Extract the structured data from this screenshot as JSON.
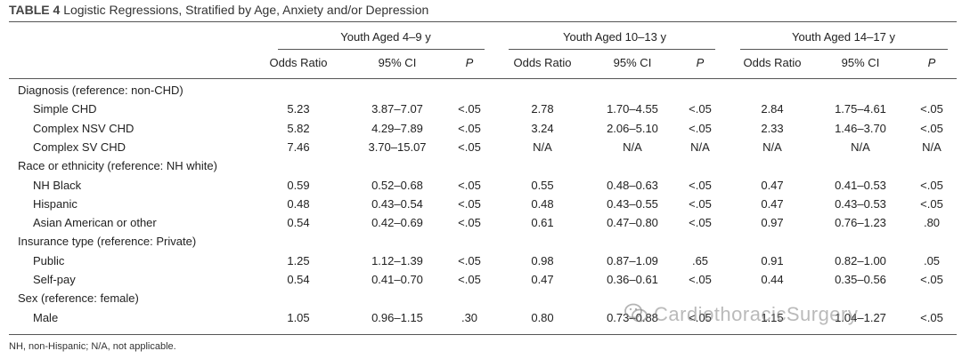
{
  "caption": {
    "label": "TABLE 4",
    "title": "Logistic Regressions, Stratified by Age, Anxiety and/or Depression"
  },
  "groups": [
    "Youth Aged 4–9 y",
    "Youth Aged 10–13 y",
    "Youth Aged 14–17 y"
  ],
  "subheaders": [
    "Odds Ratio",
    "95% CI",
    "P"
  ],
  "rows": [
    {
      "label": "Diagnosis (reference: non-CHD)",
      "indent": false,
      "cells": []
    },
    {
      "label": "Simple CHD",
      "indent": true,
      "cells": [
        "5.23",
        "3.87–7.07",
        "<.05",
        "2.78",
        "1.70–4.55",
        "<.05",
        "2.84",
        "1.75–4.61",
        "<.05"
      ]
    },
    {
      "label": "Complex NSV CHD",
      "indent": true,
      "cells": [
        "5.82",
        "4.29–7.89",
        "<.05",
        "3.24",
        "2.06–5.10",
        "<.05",
        "2.33",
        "1.46–3.70",
        "<.05"
      ]
    },
    {
      "label": "Complex SV CHD",
      "indent": true,
      "cells": [
        "7.46",
        "3.70–15.07",
        "<.05",
        "N/A",
        "N/A",
        "N/A",
        "N/A",
        "N/A",
        "N/A"
      ]
    },
    {
      "label": "Race or ethnicity (reference: NH white)",
      "indent": false,
      "cells": []
    },
    {
      "label": "NH Black",
      "indent": true,
      "cells": [
        "0.59",
        "0.52–0.68",
        "<.05",
        "0.55",
        "0.48–0.63",
        "<.05",
        "0.47",
        "0.41–0.53",
        "<.05"
      ]
    },
    {
      "label": "Hispanic",
      "indent": true,
      "cells": [
        "0.48",
        "0.43–0.54",
        "<.05",
        "0.48",
        "0.43–0.55",
        "<.05",
        "0.47",
        "0.43–0.53",
        "<.05"
      ]
    },
    {
      "label": "Asian American or other",
      "indent": true,
      "cells": [
        "0.54",
        "0.42–0.69",
        "<.05",
        "0.61",
        "0.47–0.80",
        "<.05",
        "0.97",
        "0.76–1.23",
        ".80"
      ]
    },
    {
      "label": "Insurance type (reference: Private)",
      "indent": false,
      "cells": []
    },
    {
      "label": "Public",
      "indent": true,
      "cells": [
        "1.25",
        "1.12–1.39",
        "<.05",
        "0.98",
        "0.87–1.09",
        ".65",
        "0.91",
        "0.82–1.00",
        ".05"
      ]
    },
    {
      "label": "Self-pay",
      "indent": true,
      "cells": [
        "0.54",
        "0.41–0.70",
        "<.05",
        "0.47",
        "0.36–0.61",
        "<.05",
        "0.44",
        "0.35–0.56",
        "<.05"
      ]
    },
    {
      "label": "Sex (reference: female)",
      "indent": false,
      "cells": []
    },
    {
      "label": "Male",
      "indent": true,
      "cells": [
        "1.05",
        "0.96–1.15",
        ".30",
        "0.80",
        "0.73–0.88",
        "<.05",
        "1.15",
        "1.04–1.27",
        "<.05"
      ]
    }
  ],
  "footnote": "NH, non-Hispanic; N/A, not applicable.",
  "watermark": "CardiothoracicSurgery"
}
